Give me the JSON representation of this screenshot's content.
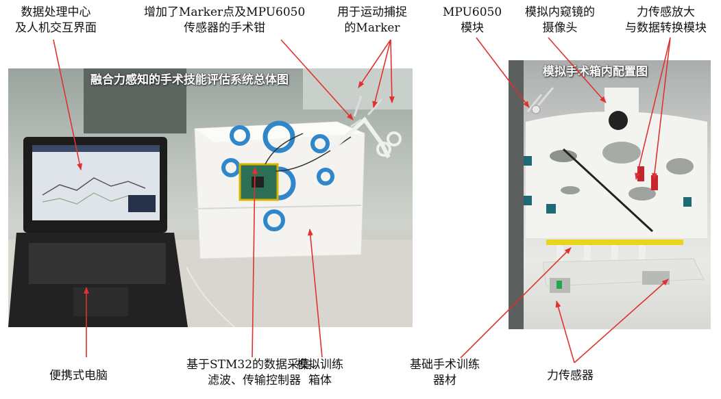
{
  "colors": {
    "arrow": "#e0312f",
    "ring": "#2f86c9",
    "board": "#2d6f55"
  },
  "photo_left": {
    "title": "融合力感知的手术技能评估系统总体图"
  },
  "photo_right": {
    "title": "模拟手术箱内配置图"
  },
  "labels": {
    "data_center": [
      "数据处理中心",
      "及人机交互界面"
    ],
    "forceps": [
      "增加了Marker点及MPU6050",
      "传感器的手术钳"
    ],
    "marker": [
      "用于运动捕捉",
      "的Marker"
    ],
    "mpu": [
      "MPU6050",
      "模块"
    ],
    "camera": [
      "模拟内窥镜的",
      "摄像头"
    ],
    "amplifier": [
      "力传感放大",
      "与数据转换模块"
    ],
    "laptop": [
      "便携式电脑"
    ],
    "stm32": [
      "基于STM32的数据采集、",
      "滤波、传输控制器"
    ],
    "box": [
      "模拟训练",
      "箱体"
    ],
    "equipment": [
      "基础手术训练",
      "器材"
    ],
    "force_sensor": [
      "力传感器"
    ]
  }
}
